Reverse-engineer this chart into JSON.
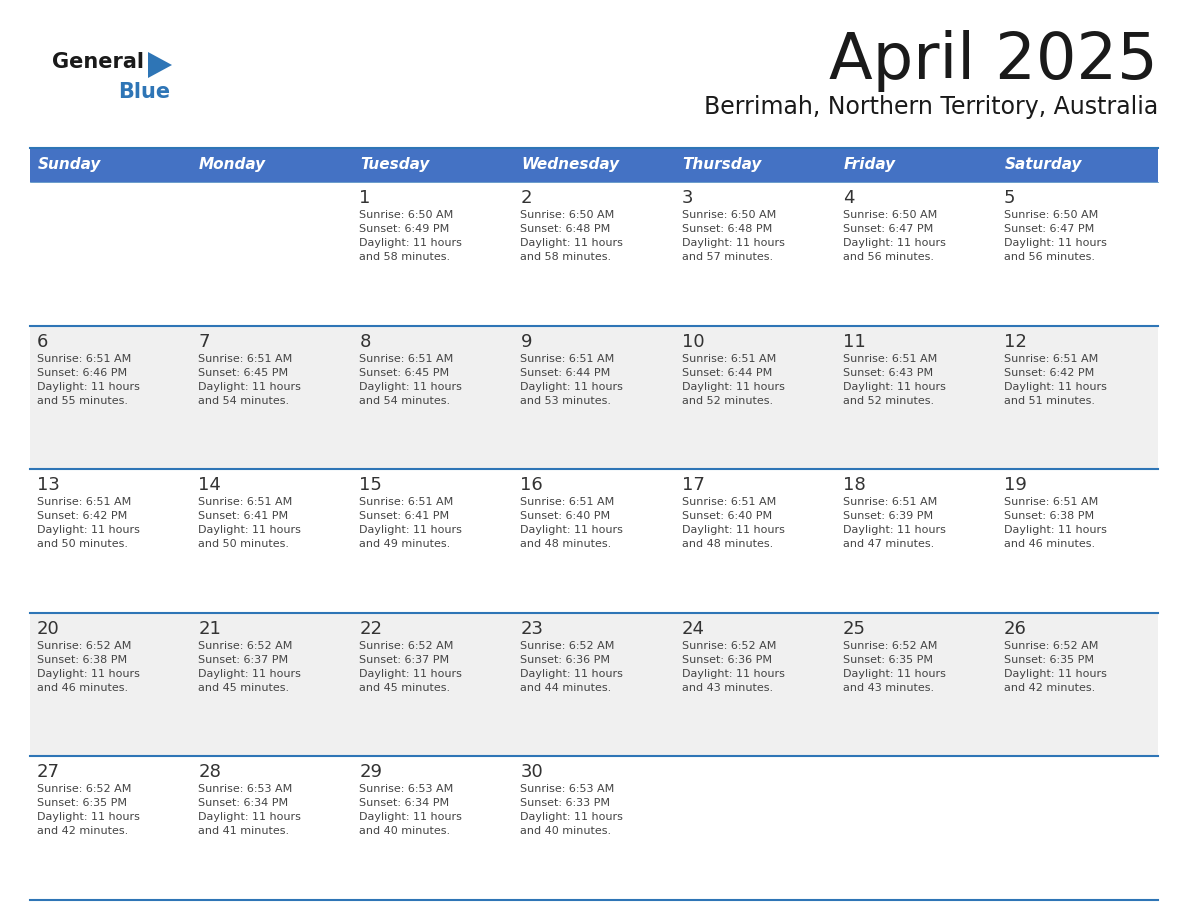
{
  "title": "April 2025",
  "subtitle": "Berrimah, Northern Territory, Australia",
  "header_bg": "#4472C4",
  "header_text_color": "#FFFFFF",
  "row_bg_white": "#FFFFFF",
  "row_bg_gray": "#F0F0F0",
  "days_of_week": [
    "Sunday",
    "Monday",
    "Tuesday",
    "Wednesday",
    "Thursday",
    "Friday",
    "Saturday"
  ],
  "calendar": [
    [
      {
        "day": "",
        "info": ""
      },
      {
        "day": "",
        "info": ""
      },
      {
        "day": "1",
        "info": "Sunrise: 6:50 AM\nSunset: 6:49 PM\nDaylight: 11 hours\nand 58 minutes."
      },
      {
        "day": "2",
        "info": "Sunrise: 6:50 AM\nSunset: 6:48 PM\nDaylight: 11 hours\nand 58 minutes."
      },
      {
        "day": "3",
        "info": "Sunrise: 6:50 AM\nSunset: 6:48 PM\nDaylight: 11 hours\nand 57 minutes."
      },
      {
        "day": "4",
        "info": "Sunrise: 6:50 AM\nSunset: 6:47 PM\nDaylight: 11 hours\nand 56 minutes."
      },
      {
        "day": "5",
        "info": "Sunrise: 6:50 AM\nSunset: 6:47 PM\nDaylight: 11 hours\nand 56 minutes."
      }
    ],
    [
      {
        "day": "6",
        "info": "Sunrise: 6:51 AM\nSunset: 6:46 PM\nDaylight: 11 hours\nand 55 minutes."
      },
      {
        "day": "7",
        "info": "Sunrise: 6:51 AM\nSunset: 6:45 PM\nDaylight: 11 hours\nand 54 minutes."
      },
      {
        "day": "8",
        "info": "Sunrise: 6:51 AM\nSunset: 6:45 PM\nDaylight: 11 hours\nand 54 minutes."
      },
      {
        "day": "9",
        "info": "Sunrise: 6:51 AM\nSunset: 6:44 PM\nDaylight: 11 hours\nand 53 minutes."
      },
      {
        "day": "10",
        "info": "Sunrise: 6:51 AM\nSunset: 6:44 PM\nDaylight: 11 hours\nand 52 minutes."
      },
      {
        "day": "11",
        "info": "Sunrise: 6:51 AM\nSunset: 6:43 PM\nDaylight: 11 hours\nand 52 minutes."
      },
      {
        "day": "12",
        "info": "Sunrise: 6:51 AM\nSunset: 6:42 PM\nDaylight: 11 hours\nand 51 minutes."
      }
    ],
    [
      {
        "day": "13",
        "info": "Sunrise: 6:51 AM\nSunset: 6:42 PM\nDaylight: 11 hours\nand 50 minutes."
      },
      {
        "day": "14",
        "info": "Sunrise: 6:51 AM\nSunset: 6:41 PM\nDaylight: 11 hours\nand 50 minutes."
      },
      {
        "day": "15",
        "info": "Sunrise: 6:51 AM\nSunset: 6:41 PM\nDaylight: 11 hours\nand 49 minutes."
      },
      {
        "day": "16",
        "info": "Sunrise: 6:51 AM\nSunset: 6:40 PM\nDaylight: 11 hours\nand 48 minutes."
      },
      {
        "day": "17",
        "info": "Sunrise: 6:51 AM\nSunset: 6:40 PM\nDaylight: 11 hours\nand 48 minutes."
      },
      {
        "day": "18",
        "info": "Sunrise: 6:51 AM\nSunset: 6:39 PM\nDaylight: 11 hours\nand 47 minutes."
      },
      {
        "day": "19",
        "info": "Sunrise: 6:51 AM\nSunset: 6:38 PM\nDaylight: 11 hours\nand 46 minutes."
      }
    ],
    [
      {
        "day": "20",
        "info": "Sunrise: 6:52 AM\nSunset: 6:38 PM\nDaylight: 11 hours\nand 46 minutes."
      },
      {
        "day": "21",
        "info": "Sunrise: 6:52 AM\nSunset: 6:37 PM\nDaylight: 11 hours\nand 45 minutes."
      },
      {
        "day": "22",
        "info": "Sunrise: 6:52 AM\nSunset: 6:37 PM\nDaylight: 11 hours\nand 45 minutes."
      },
      {
        "day": "23",
        "info": "Sunrise: 6:52 AM\nSunset: 6:36 PM\nDaylight: 11 hours\nand 44 minutes."
      },
      {
        "day": "24",
        "info": "Sunrise: 6:52 AM\nSunset: 6:36 PM\nDaylight: 11 hours\nand 43 minutes."
      },
      {
        "day": "25",
        "info": "Sunrise: 6:52 AM\nSunset: 6:35 PM\nDaylight: 11 hours\nand 43 minutes."
      },
      {
        "day": "26",
        "info": "Sunrise: 6:52 AM\nSunset: 6:35 PM\nDaylight: 11 hours\nand 42 minutes."
      }
    ],
    [
      {
        "day": "27",
        "info": "Sunrise: 6:52 AM\nSunset: 6:35 PM\nDaylight: 11 hours\nand 42 minutes."
      },
      {
        "day": "28",
        "info": "Sunrise: 6:53 AM\nSunset: 6:34 PM\nDaylight: 11 hours\nand 41 minutes."
      },
      {
        "day": "29",
        "info": "Sunrise: 6:53 AM\nSunset: 6:34 PM\nDaylight: 11 hours\nand 40 minutes."
      },
      {
        "day": "30",
        "info": "Sunrise: 6:53 AM\nSunset: 6:33 PM\nDaylight: 11 hours\nand 40 minutes."
      },
      {
        "day": "",
        "info": ""
      },
      {
        "day": "",
        "info": ""
      },
      {
        "day": "",
        "info": ""
      }
    ]
  ],
  "logo_general_color": "#1a1a1a",
  "logo_blue_color": "#2E75B6",
  "logo_triangle_color": "#2E75B6",
  "title_color": "#1a1a1a",
  "subtitle_color": "#1a1a1a",
  "divider_color": "#2E75B6",
  "day_num_color": "#333333",
  "info_text_color": "#444444",
  "fig_width": 11.88,
  "fig_height": 9.18,
  "fig_dpi": 100
}
